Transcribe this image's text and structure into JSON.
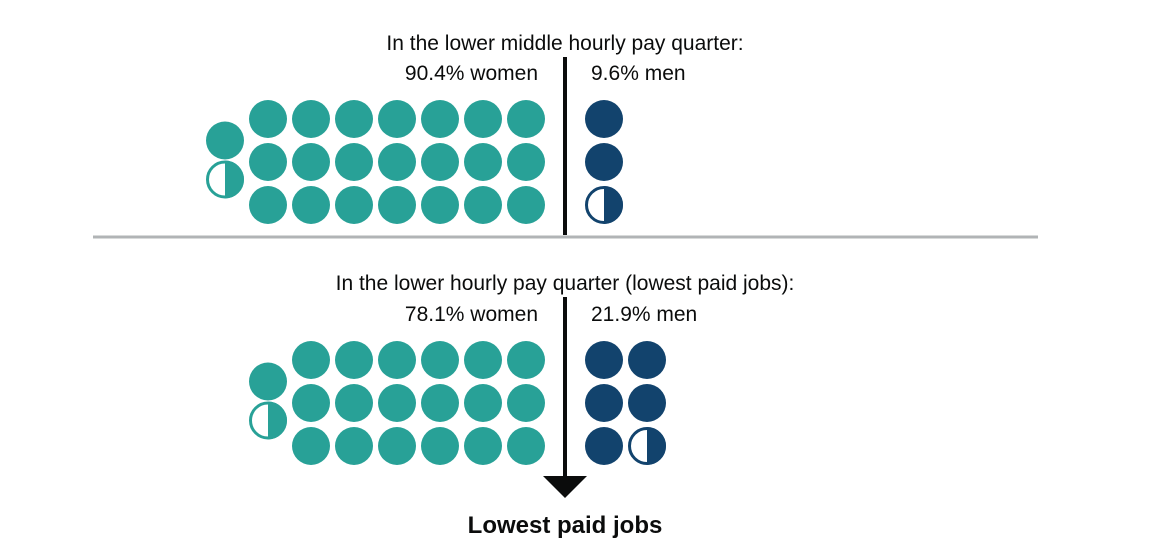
{
  "chart_data": {
    "type": "waffle",
    "unit_percent": 4,
    "colors": {
      "women": "#28a197",
      "men": "#12436d",
      "divider": "#b1b4b6",
      "axis": "#0b0c0c"
    },
    "quarters": [
      {
        "title": "In the lower middle hourly pay quarter:",
        "women_label": "90.4% women",
        "men_label": "9.6% men",
        "women_percent": 90.4,
        "men_percent": 9.6
      },
      {
        "title": "In the lower hourly pay quarter (lowest paid jobs):",
        "women_label": "78.1% women",
        "men_label": "21.9% men",
        "women_percent": 78.1,
        "men_percent": 21.9
      }
    ],
    "footer_label": "Lowest paid jobs"
  }
}
